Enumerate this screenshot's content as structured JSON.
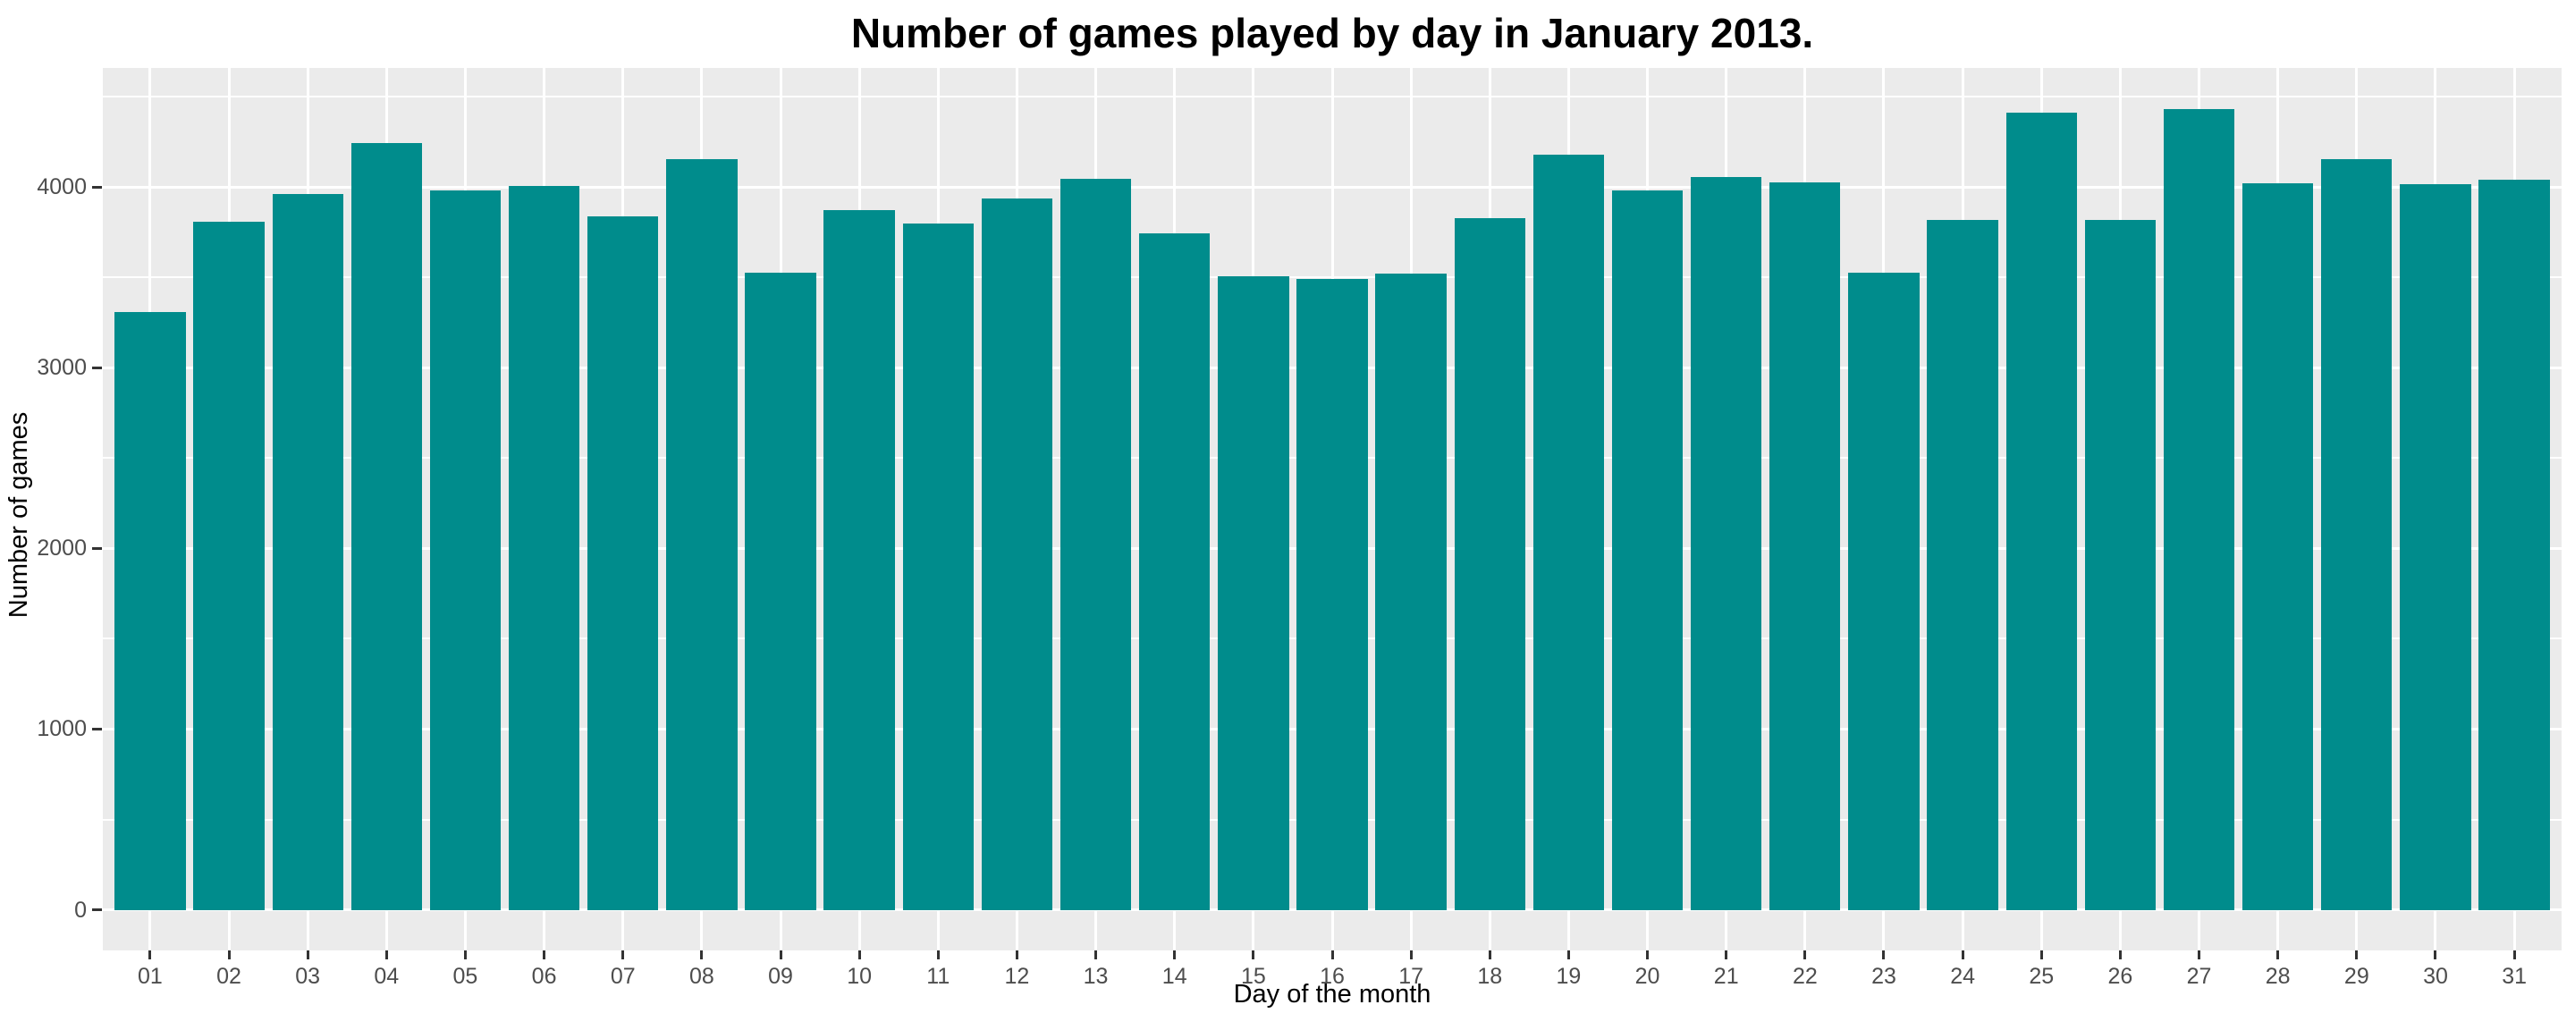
{
  "chart_data": {
    "type": "bar",
    "title": "Number of games played by day in January 2013.",
    "xlabel": "Day of the month",
    "ylabel": "Number of games",
    "categories": [
      "01",
      "02",
      "03",
      "04",
      "05",
      "06",
      "07",
      "08",
      "09",
      "10",
      "11",
      "12",
      "13",
      "14",
      "15",
      "16",
      "17",
      "18",
      "19",
      "20",
      "21",
      "22",
      "23",
      "24",
      "25",
      "26",
      "27",
      "28",
      "29",
      "30",
      "31"
    ],
    "values": [
      3310,
      3810,
      3960,
      4245,
      3980,
      4005,
      3840,
      4155,
      3525,
      3875,
      3800,
      3935,
      4045,
      3745,
      3505,
      3490,
      3520,
      3830,
      4180,
      3980,
      4055,
      4025,
      3525,
      3820,
      4415,
      3820,
      4430,
      4020,
      4155,
      4015,
      4040
    ],
    "y_ticks": [
      0,
      1000,
      2000,
      3000,
      4000
    ],
    "y_tick_labels": [
      "0",
      "1000",
      "2000",
      "3000",
      "4000"
    ],
    "y_minor_ticks": [
      500,
      1500,
      2500,
      3500,
      4500
    ],
    "ylim_panel": [
      -225,
      4660
    ],
    "grid": true,
    "legend": false,
    "colors": {
      "bar_fill": "#008C8C",
      "panel_background": "#EBEBEB",
      "gridline": "#FFFFFF",
      "tick_label_text": "#4D4D4D",
      "axis_title_text": "#000000",
      "title_text": "#000000",
      "tick_mark": "#333333",
      "page_background": "#FFFFFF"
    }
  }
}
